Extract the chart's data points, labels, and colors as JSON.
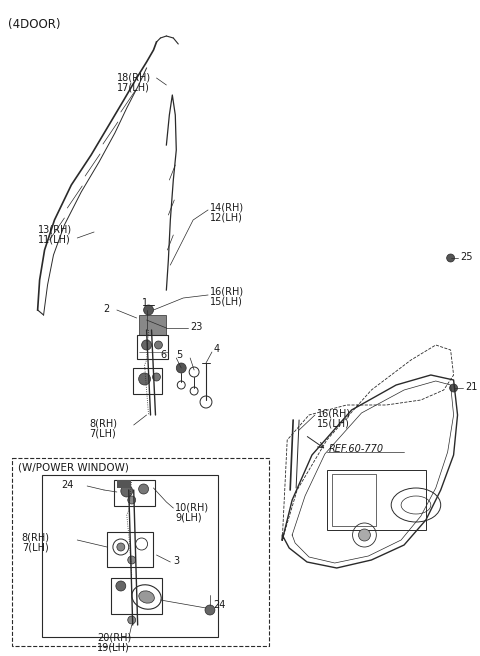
{
  "bg_color": "#ffffff",
  "line_color": "#2a2a2a",
  "text_color": "#1a1a1a",
  "title": "(4DOOR)",
  "ref_text": "REF.60-770",
  "wpw_label": "(W/POWER WINDOW)"
}
